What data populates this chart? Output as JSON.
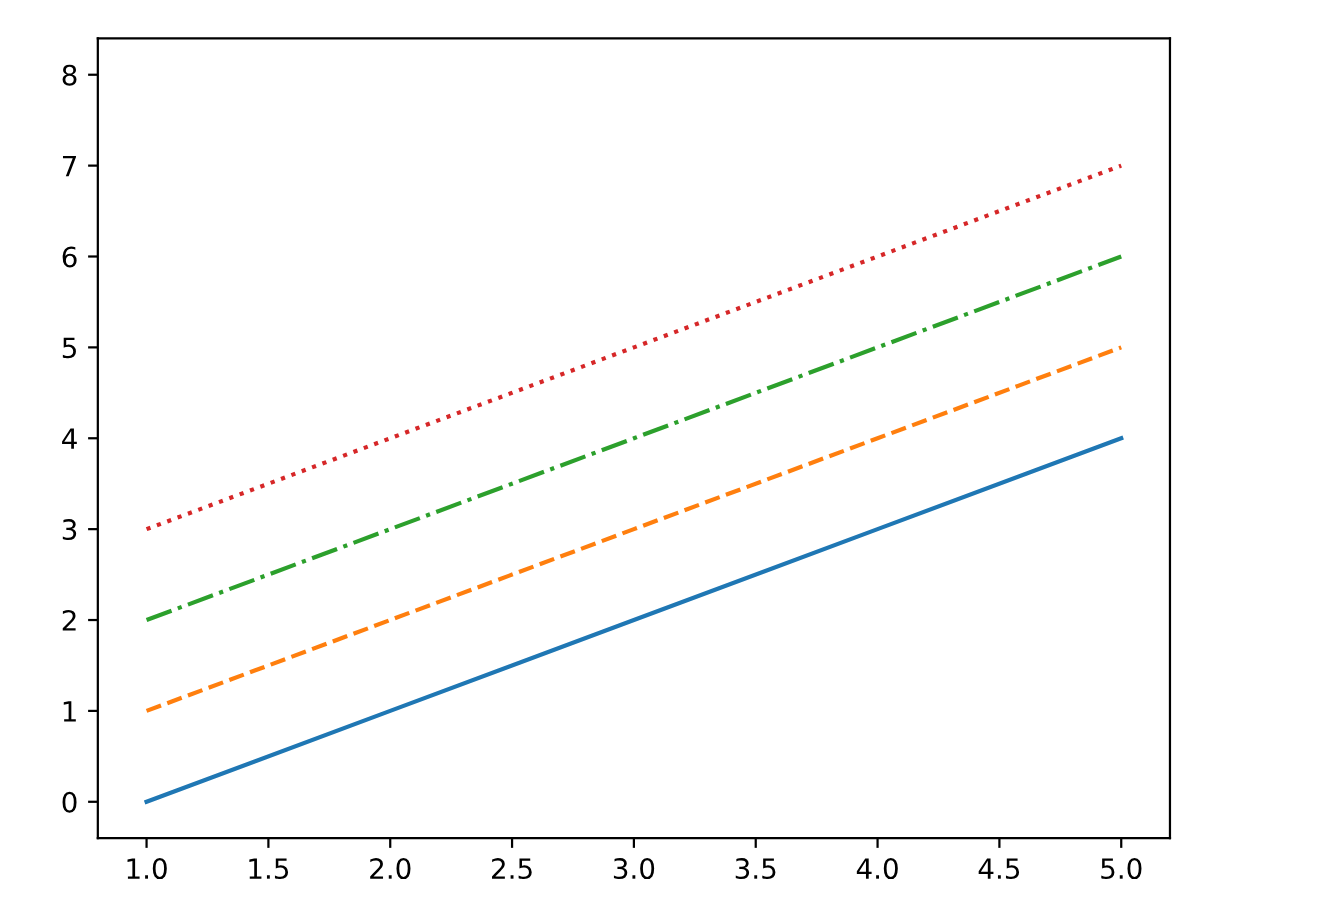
{
  "chart_data": {
    "type": "line",
    "x": [
      1,
      2,
      3,
      4,
      5
    ],
    "series": [
      {
        "color": "#1f77b4",
        "values": [
          0,
          1,
          2,
          3,
          4
        ],
        "line_style": "solid"
      },
      {
        "color": "#ff7f0e",
        "values": [
          1,
          2,
          3,
          4,
          5
        ],
        "line_style": "dashed"
      },
      {
        "color": "#2ca02c",
        "values": [
          2,
          3,
          4,
          5,
          6
        ],
        "line_style": "dashdot"
      },
      {
        "color": "#d62728",
        "values": [
          3,
          4,
          5,
          6,
          7
        ],
        "line_style": "dotted"
      }
    ],
    "xlim": [
      0.8,
      5.2
    ],
    "ylim": [
      -0.4,
      8.4
    ],
    "xticks": [
      {
        "value": 1,
        "label": "1.0"
      },
      {
        "value": 1.5,
        "label": "1.5"
      },
      {
        "value": 2,
        "label": "2.0"
      },
      {
        "value": 2.5,
        "label": "2.5"
      },
      {
        "value": 3,
        "label": "3.0"
      },
      {
        "value": 3.5,
        "label": "3.5"
      },
      {
        "value": 4,
        "label": "4.0"
      },
      {
        "value": 4.5,
        "label": "4.5"
      },
      {
        "value": 5,
        "label": "5.0"
      }
    ],
    "yticks": [
      0,
      1,
      2,
      3,
      4,
      5,
      6,
      7,
      8
    ],
    "grid": false,
    "legend": false,
    "marker": "none"
  }
}
